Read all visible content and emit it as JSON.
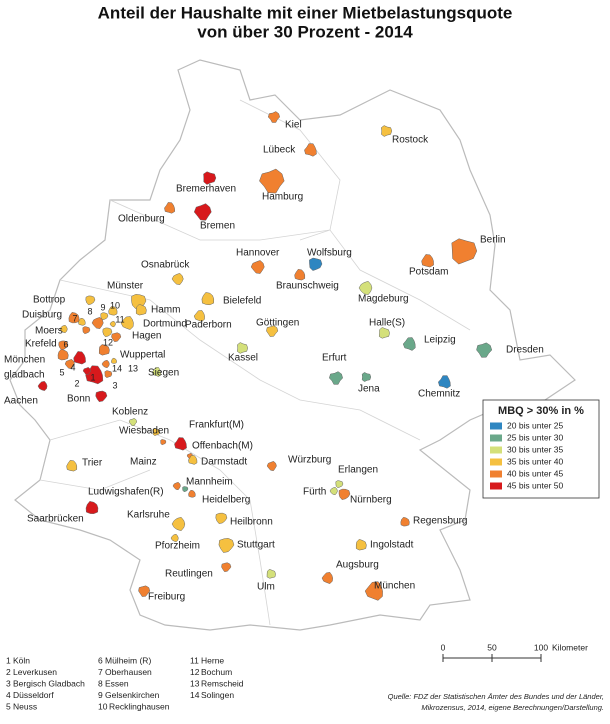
{
  "title": [
    "Anteil der Haushalte mit einer Mietbelastungsquote",
    "von über 30 Prozent - 2014"
  ],
  "cities": [
    {
      "name": "Kiel",
      "color": "#f08030"
    },
    {
      "name": "Rostock",
      "color": "#f5c040"
    },
    {
      "name": "Lübeck",
      "color": "#f08030"
    },
    {
      "name": "Hamburg",
      "color": "#f08030"
    },
    {
      "name": "Bremerhaven",
      "color": "#d7191c"
    },
    {
      "name": "Oldenburg",
      "color": "#f08030"
    },
    {
      "name": "Bremen",
      "color": "#d7191c"
    },
    {
      "name": "Berlin",
      "color": "#f08030"
    },
    {
      "name": "Potsdam",
      "color": "#f08030"
    },
    {
      "name": "Hannover",
      "color": "#f08030"
    },
    {
      "name": "Wolfsburg",
      "color": "#2e86c1"
    },
    {
      "name": "Braunschweig",
      "color": "#f08030"
    },
    {
      "name": "Osnabrück",
      "color": "#f5c040"
    },
    {
      "name": "Münster",
      "color": "#f5c040"
    },
    {
      "name": "Bielefeld",
      "color": "#f5c040"
    },
    {
      "name": "Magdeburg",
      "color": "#d4e07a"
    },
    {
      "name": "Bottrop",
      "color": "#f5c040"
    },
    {
      "name": "Duisburg",
      "color": "#f08030"
    },
    {
      "name": "Moers",
      "color": "#f5c040"
    },
    {
      "name": "Krefeld",
      "color": "#f08030"
    },
    {
      "name": [
        "Mönchen",
        "gladbach"
      ],
      "color": "#f08030"
    },
    {
      "name": "Aachen",
      "color": "#d7191c"
    },
    {
      "name": "Bonn",
      "color": "#d7191c"
    },
    {
      "name": "Hamm",
      "color": "#f5c040"
    },
    {
      "name": "Dortmund",
      "color": "#f5c040"
    },
    {
      "name": "Hagen",
      "color": "#f08030"
    },
    {
      "name": "Wuppertal",
      "color": "#f08030"
    },
    {
      "name": "Paderborn",
      "color": "#f5c040"
    },
    {
      "name": "Göttingen",
      "color": "#f5c040"
    },
    {
      "name": "Halle(S)",
      "color": "#d4e07a"
    },
    {
      "name": "Leipzig",
      "color": "#6aa88a"
    },
    {
      "name": "Dresden",
      "color": "#6aa88a"
    },
    {
      "name": "Kassel",
      "color": "#d4e07a"
    },
    {
      "name": "Siegen",
      "color": "#d4e07a"
    },
    {
      "name": "Erfurt",
      "color": "#6aa88a"
    },
    {
      "name": "Jena",
      "color": "#6aa88a"
    },
    {
      "name": "Chemnitz",
      "color": "#2e86c1"
    },
    {
      "name": "Koblenz",
      "color": "#d4e07a"
    },
    {
      "name": "Wiesbaden",
      "color": "#f5c040"
    },
    {
      "name": "Frankfurt(M)",
      "color": "#d7191c"
    },
    {
      "name": "Offenbach(M)",
      "color": "#f08030"
    },
    {
      "name": "Mainz",
      "color": "#f08030"
    },
    {
      "name": "Darmstadt",
      "color": "#f5c040"
    },
    {
      "name": "Würzburg",
      "color": "#f08030"
    },
    {
      "name": "Erlangen",
      "color": "#d4e07a"
    },
    {
      "name": "Trier",
      "color": "#f5c040"
    },
    {
      "name": "Ludwigshafen(R)",
      "color": "#f08030"
    },
    {
      "name": "Mannheim",
      "color": "#6aa88a"
    },
    {
      "name": "Heidelberg",
      "color": "#f08030"
    },
    {
      "name": "Fürth",
      "color": "#d4e07a"
    },
    {
      "name": "Nürnberg",
      "color": "#f08030"
    },
    {
      "name": "Saarbrücken",
      "color": "#d7191c"
    },
    {
      "name": "Karlsruhe",
      "color": "#f5c040"
    },
    {
      "name": "Heilbronn",
      "color": "#f5c040"
    },
    {
      "name": "Regensburg",
      "color": "#f08030"
    },
    {
      "name": "Pforzheim",
      "color": "#f5c040"
    },
    {
      "name": "Stuttgart",
      "color": "#f5c040"
    },
    {
      "name": "Ingolstadt",
      "color": "#f5c040"
    },
    {
      "name": "Augsburg",
      "color": "#f08030"
    },
    {
      "name": "Reutlingen",
      "color": "#f08030"
    },
    {
      "name": "Ulm",
      "color": "#d4e07a"
    },
    {
      "name": "München",
      "color": "#f08030"
    },
    {
      "name": "Freiburg",
      "color": "#f08030"
    }
  ],
  "numbered_cities": [
    {
      "number": 1,
      "name": "Köln",
      "color": "#d7191c"
    },
    {
      "number": 2,
      "name": "Leverkusen",
      "color": "#d7191c"
    },
    {
      "number": 3,
      "name": "Bergisch Gladbach",
      "color": "#f08030"
    },
    {
      "number": 4,
      "name": "Düsseldorf",
      "color": "#d7191c"
    },
    {
      "number": 5,
      "name": "Neuss",
      "color": "#f08030"
    },
    {
      "number": 6,
      "name": "Mülheim (R)",
      "color": "#f08030"
    },
    {
      "number": 7,
      "name": "Oberhausen",
      "color": "#f5c040"
    },
    {
      "number": 8,
      "name": "Essen",
      "color": "#f08030"
    },
    {
      "number": 9,
      "name": "Gelsenkirchen",
      "color": "#f5c040"
    },
    {
      "number": 10,
      "name": "Recklinghausen",
      "color": "#f5c040"
    },
    {
      "number": 11,
      "name": "Herne",
      "color": "#f5c040"
    },
    {
      "number": 12,
      "name": "Bochum",
      "color": "#f5c040"
    },
    {
      "number": 13,
      "name": "Remscheid",
      "color": "#f5c040"
    },
    {
      "number": 14,
      "name": "Solingen",
      "color": "#f08030"
    }
  ],
  "legend": {
    "title": "MBQ > 30% in %",
    "classes": [
      {
        "label": "20 bis unter 25",
        "color": "#2e86c1"
      },
      {
        "label": "25 bis unter 30",
        "color": "#6aa88a"
      },
      {
        "label": "30 bis unter 35",
        "color": "#d4e07a"
      },
      {
        "label": "35 bis unter 40",
        "color": "#f5c040"
      },
      {
        "label": "40 bis unter 45",
        "color": "#f08030"
      },
      {
        "label": "45 bis unter 50",
        "color": "#d7191c"
      }
    ]
  },
  "scale_bar": {
    "ticks": [
      0,
      50,
      100
    ],
    "unit": "Kilometer"
  },
  "source": [
    "Quelle: FDZ der Statistischen Ämter des Bundes und der Länder,",
    "Mikrozensus, 2014, eigene Berechnungen/Darstellung."
  ]
}
